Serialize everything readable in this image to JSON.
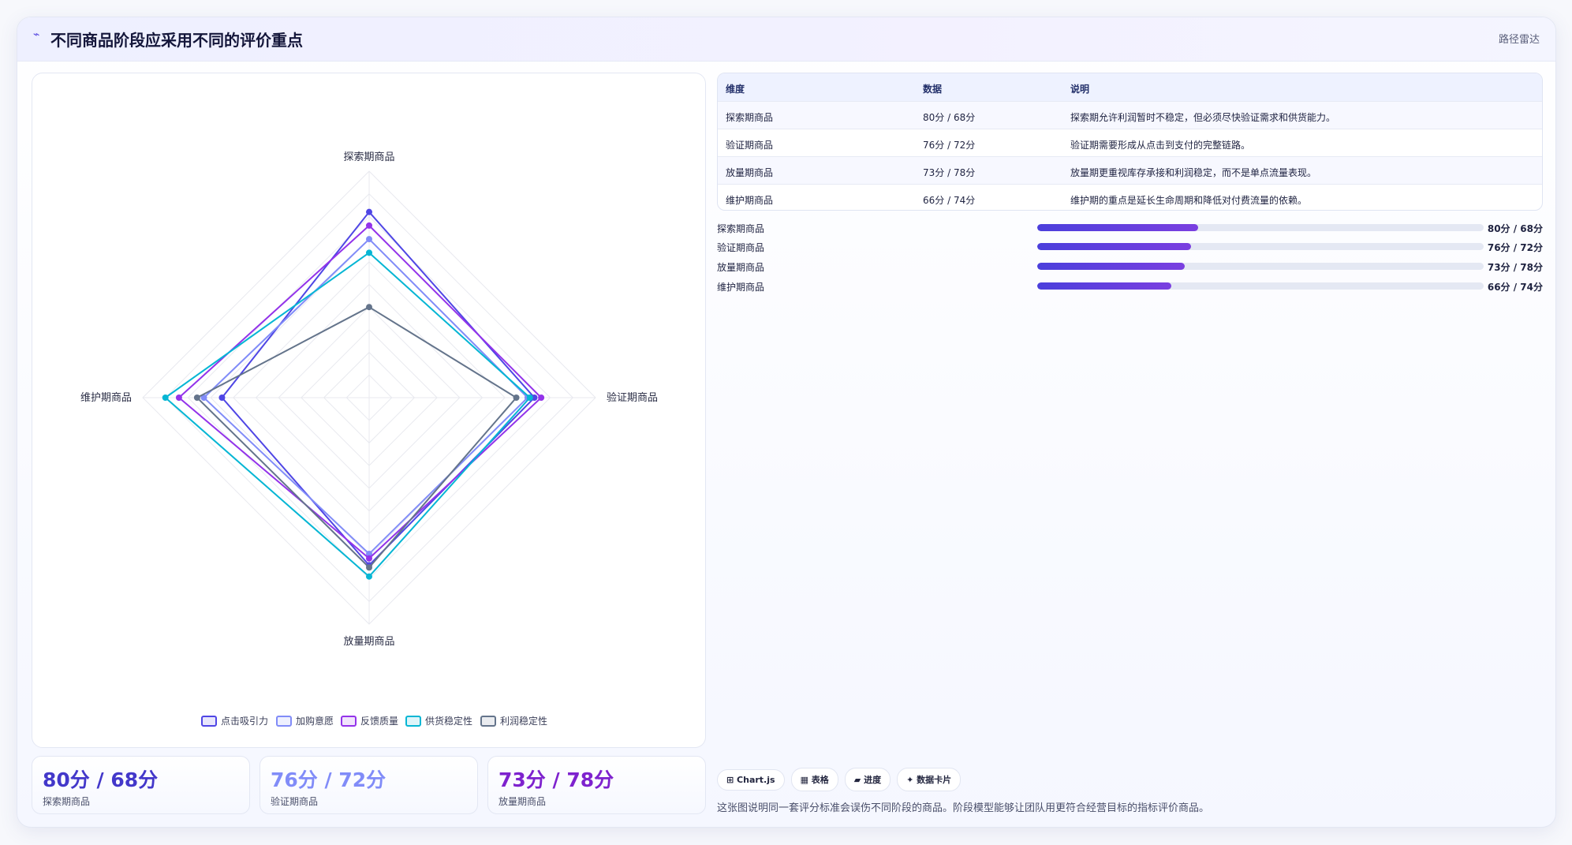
{
  "header": {
    "icon": "signal-icon",
    "title": "不同商品阶段应采用不同的评价重点",
    "tag": "路径雷达"
  },
  "chart_data": {
    "type": "radar",
    "title": "",
    "axes": [
      "探索期商品",
      "验证期商品",
      "放量期商品",
      "维护期商品"
    ],
    "range": [
      0,
      100
    ],
    "grid": true,
    "legend_position": "bottom",
    "series": [
      {
        "name": "点击吸引力",
        "color": "#4f46e5",
        "values": [
          82,
          73,
          74,
          65
        ]
      },
      {
        "name": "加购意愿",
        "color": "#818cf8",
        "values": [
          70,
          70,
          69,
          73
        ]
      },
      {
        "name": "反馈质量",
        "color": "#9333ea",
        "values": [
          76,
          76,
          71,
          84
        ]
      },
      {
        "name": "供货稳定性",
        "color": "#06b6d4",
        "values": [
          64,
          71,
          79,
          90
        ]
      },
      {
        "name": "利润稳定性",
        "color": "#64748b",
        "values": [
          40,
          65,
          75,
          76
        ]
      }
    ]
  },
  "table": {
    "headers": [
      "维度",
      "数据",
      "说明"
    ],
    "rows": [
      [
        "探索期商品",
        "80分 / 68分",
        "探索期允许利润暂时不稳定，但必须尽快验证需求和供货能力。"
      ],
      [
        "验证期商品",
        "76分 / 72分",
        "验证期需要形成从点击到支付的完整链路。"
      ],
      [
        "放量期商品",
        "73分 / 78分",
        "放量期更重视库存承接和利润稳定，而不是单点流量表现。"
      ],
      [
        "维护期商品",
        "66分 / 74分",
        "维护期的重点是延长生命周期和降低对付费流量的依赖。"
      ]
    ]
  },
  "progress": [
    {
      "label": "探索期商品",
      "value": "80分 / 68分",
      "fraction": 0.36
    },
    {
      "label": "验证期商品",
      "value": "76分 / 72分",
      "fraction": 0.345
    },
    {
      "label": "放量期商品",
      "value": "73分 / 78分",
      "fraction": 0.33
    },
    {
      "label": "维护期商品",
      "value": "66分 / 74分",
      "fraction": 0.3
    }
  ],
  "stats": [
    {
      "value": "80分 / 68分",
      "label": "探索期商品",
      "color": "#4338ca"
    },
    {
      "value": "76分 / 72分",
      "label": "验证期商品",
      "color": "#818cf8"
    },
    {
      "value": "73分 / 78分",
      "label": "放量期商品",
      "color": "#7e22ce"
    }
  ],
  "chips": [
    "⊞ Chart.js",
    "▦ 表格",
    "▰ 进度",
    "✦ 数据卡片"
  ],
  "note": "这张图说明同一套评分标准会误伤不同阶段的商品。阶段模型能够让团队用更符合经营目标的指标评价商品。"
}
